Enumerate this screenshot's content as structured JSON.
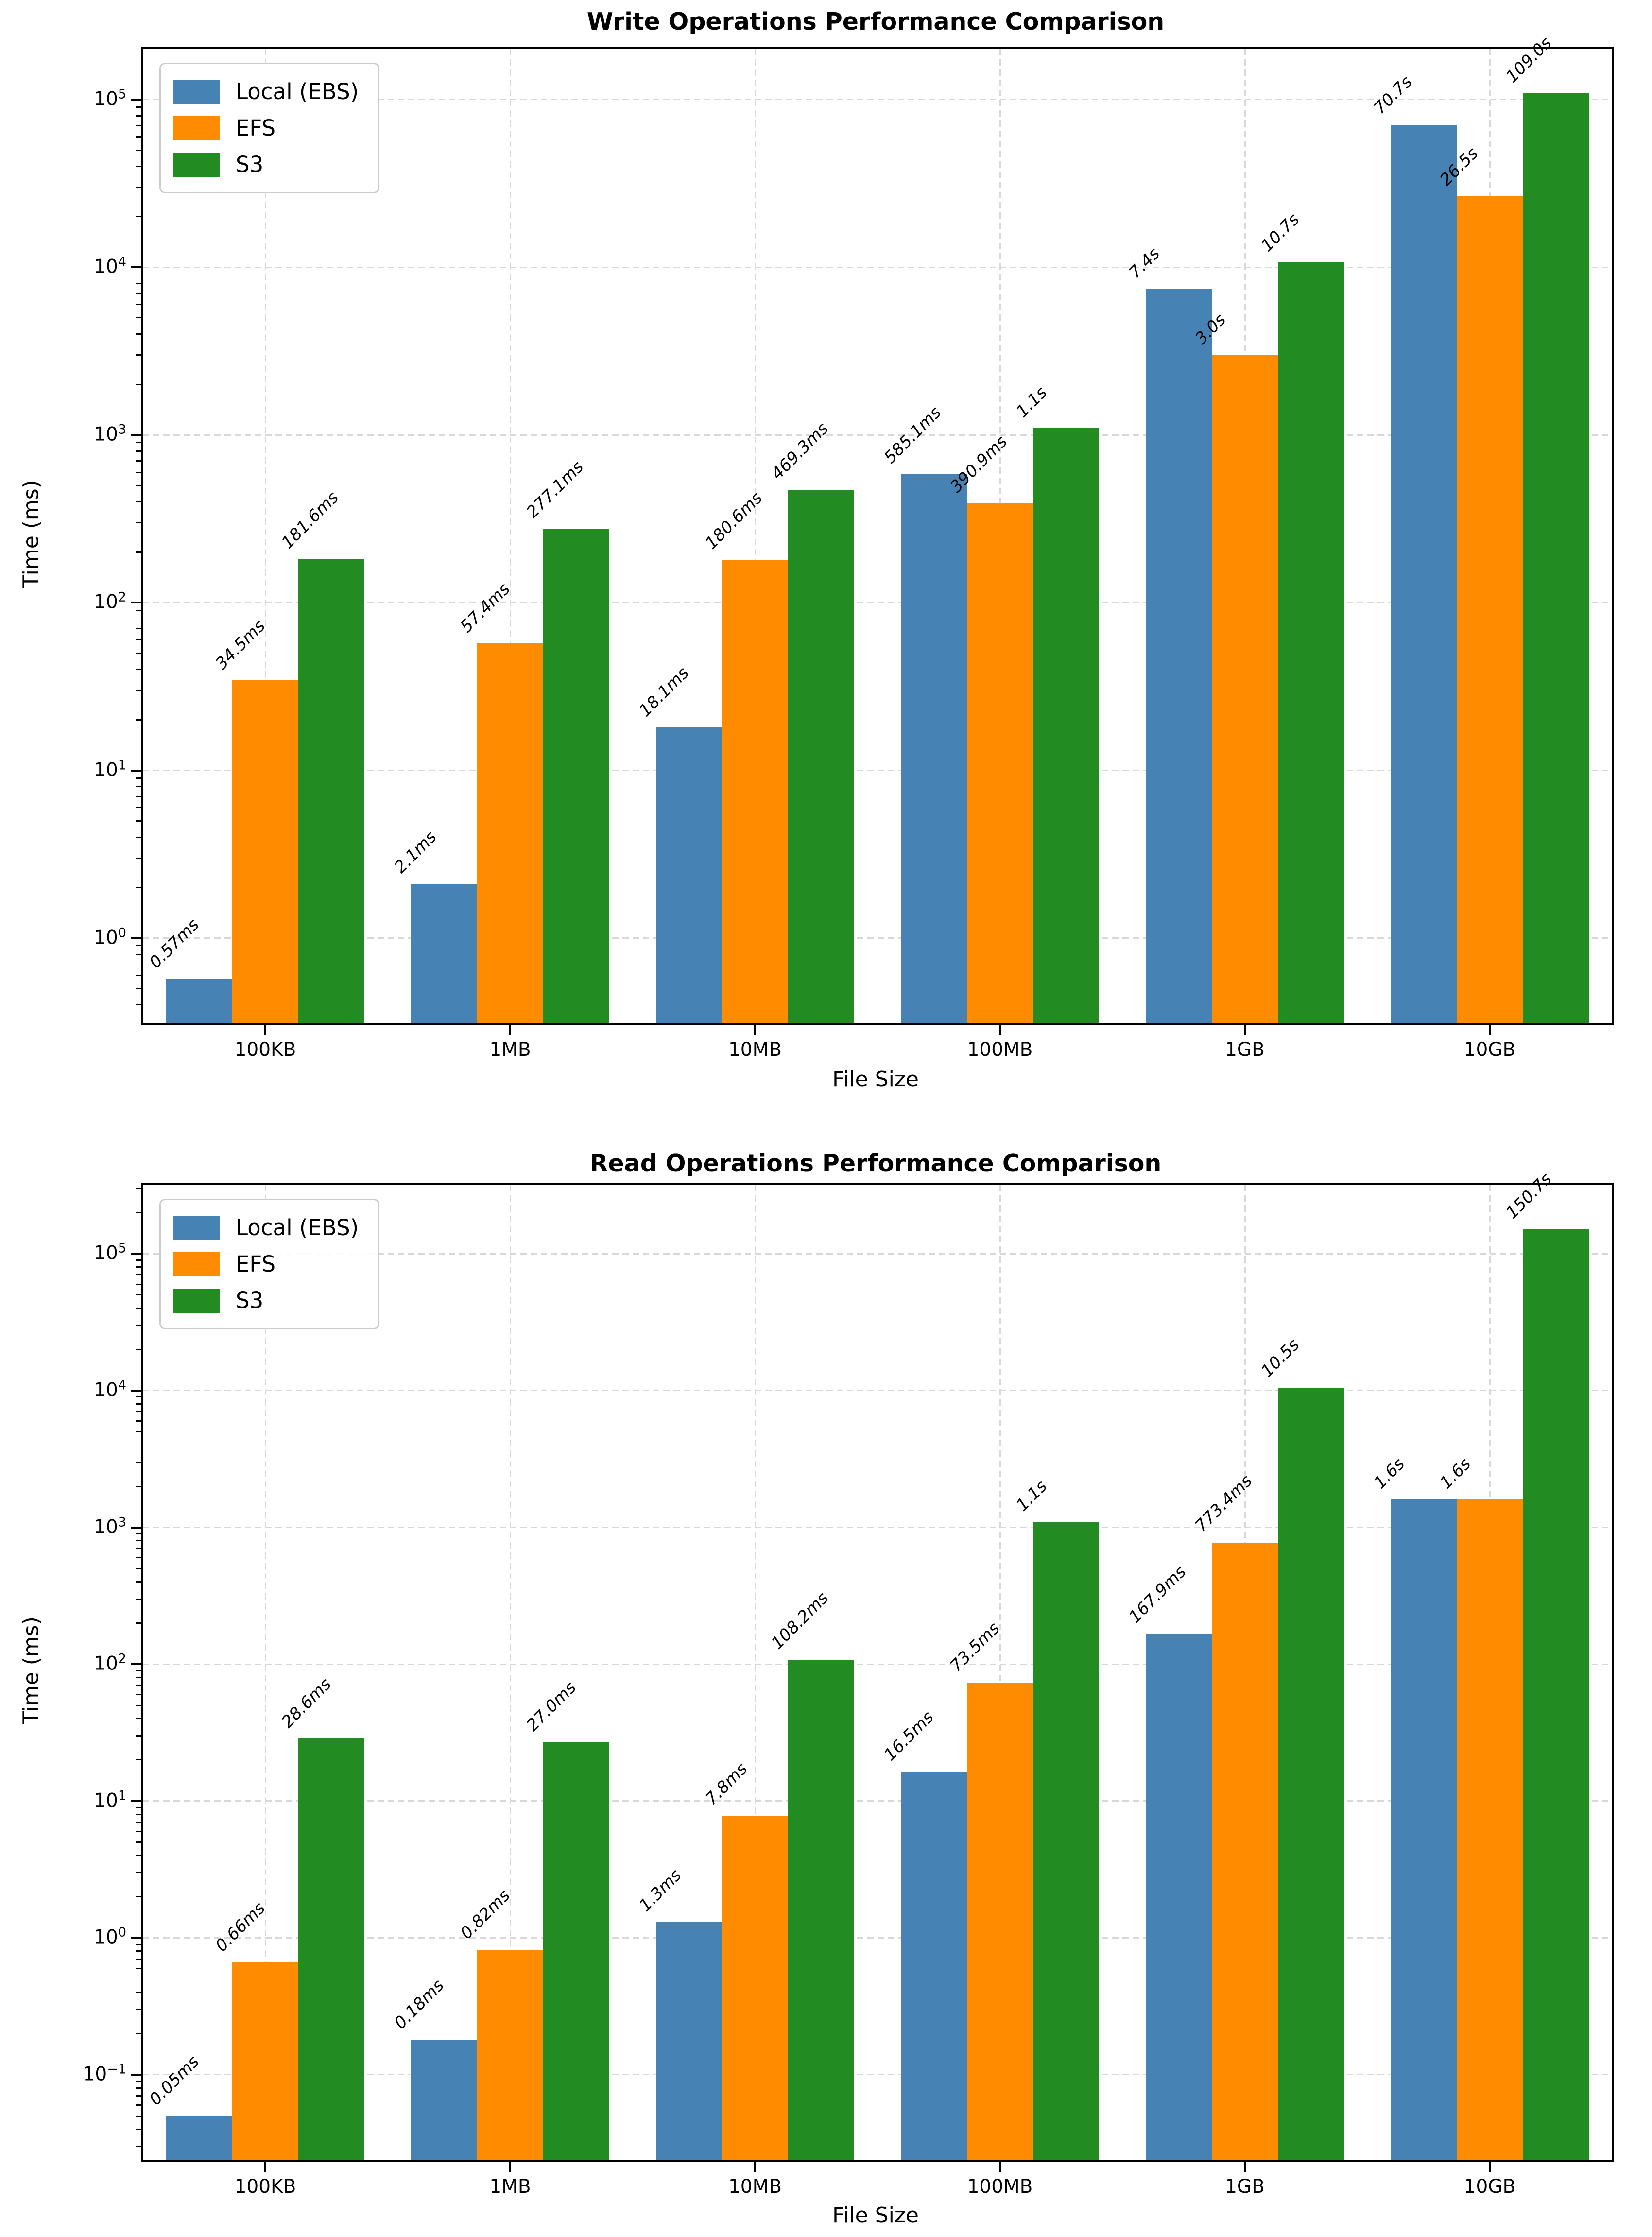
{
  "chart_data": [
    {
      "type": "bar",
      "title": "Write Operations Performance Comparison",
      "xlabel": "File Size",
      "ylabel": "Time (ms)",
      "yscale": "log",
      "ylim_log10": [
        -0.508,
        5.301
      ],
      "ytick_exponents": [
        0,
        1,
        2,
        3,
        4,
        5
      ],
      "grid": true,
      "legend_position": "upper left",
      "categories": [
        "100KB",
        "1MB",
        "10MB",
        "100MB",
        "1GB",
        "10GB"
      ],
      "series": [
        {
          "name": "Local (EBS)",
          "color": "#4682b4",
          "values_ms": [
            0.57,
            2.1,
            18.1,
            585.1,
            7400,
            70700
          ],
          "labels": [
            "0.57ms",
            "2.1ms",
            "18.1ms",
            "585.1ms",
            "7.4s",
            "70.7s"
          ]
        },
        {
          "name": "EFS",
          "color": "#ff8c00",
          "values_ms": [
            34.5,
            57.4,
            180.6,
            390.9,
            3000,
            26500
          ],
          "labels": [
            "34.5ms",
            "57.4ms",
            "180.6ms",
            "390.9ms",
            "3.0s",
            "26.5s"
          ]
        },
        {
          "name": "S3",
          "color": "#228b22",
          "values_ms": [
            181.6,
            277.1,
            469.3,
            1100,
            10700,
            109000
          ],
          "labels": [
            "181.6ms",
            "277.1ms",
            "469.3ms",
            "1.1s",
            "10.7s",
            "109.0s"
          ]
        }
      ]
    },
    {
      "type": "bar",
      "title": "Read Operations Performance Comparison",
      "xlabel": "File Size",
      "ylabel": "Time (ms)",
      "yscale": "log",
      "ylim_log10": [
        -1.625,
        5.502
      ],
      "ytick_exponents": [
        -1,
        0,
        1,
        2,
        3,
        4,
        5
      ],
      "grid": true,
      "legend_position": "upper left",
      "categories": [
        "100KB",
        "1MB",
        "10MB",
        "100MB",
        "1GB",
        "10GB"
      ],
      "series": [
        {
          "name": "Local (EBS)",
          "color": "#4682b4",
          "values_ms": [
            0.05,
            0.18,
            1.3,
            16.5,
            167.9,
            1600
          ],
          "labels": [
            "0.05ms",
            "0.18ms",
            "1.3ms",
            "16.5ms",
            "167.9ms",
            "1.6s"
          ]
        },
        {
          "name": "EFS",
          "color": "#ff8c00",
          "values_ms": [
            0.66,
            0.82,
            7.8,
            73.5,
            773.4,
            1600
          ],
          "labels": [
            "0.66ms",
            "0.82ms",
            "7.8ms",
            "73.5ms",
            "773.4ms",
            "1.6s"
          ]
        },
        {
          "name": "S3",
          "color": "#228b22",
          "values_ms": [
            28.6,
            27.0,
            108.2,
            1100,
            10500,
            150700
          ],
          "labels": [
            "28.6ms",
            "27.0ms",
            "108.2ms",
            "1.1s",
            "10.5s",
            "150.7s"
          ]
        }
      ]
    }
  ]
}
